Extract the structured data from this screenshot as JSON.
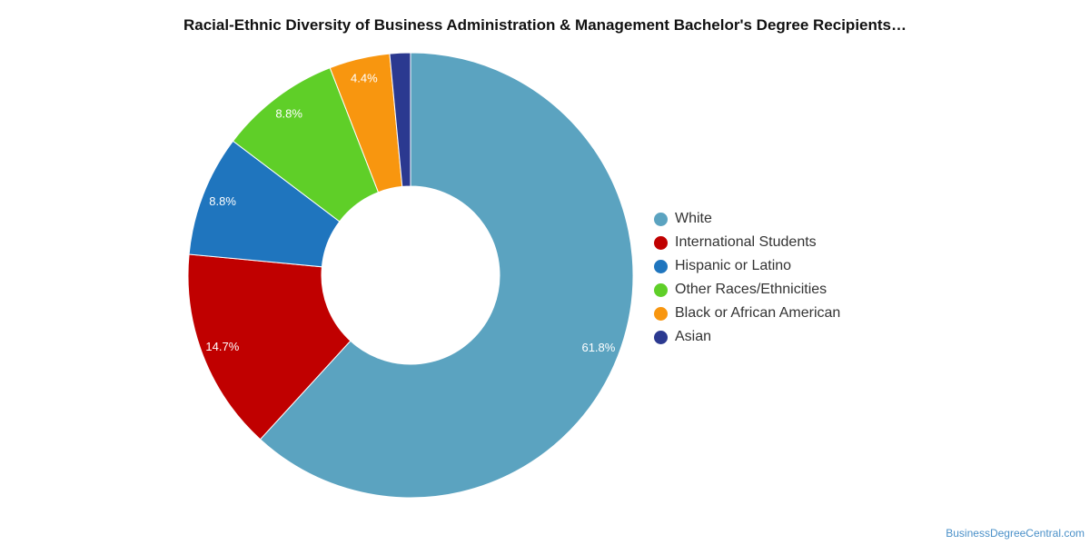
{
  "chart_data": {
    "type": "pie",
    "title": "Racial-Ethnic Diversity of Business Administration & Management Bachelor's Degree Recipients…",
    "donut": true,
    "legend_position": "right",
    "categories": [
      "White",
      "International Students",
      "Hispanic or Latino",
      "Other Races/Ethnicities",
      "Black or African American",
      "Asian"
    ],
    "values": [
      61.8,
      14.7,
      8.8,
      8.8,
      4.4,
      1.5
    ],
    "data_labels": [
      "61.8%",
      "14.7%",
      "8.8%",
      "8.8%",
      "4.4%",
      ""
    ],
    "colors": [
      "#5ba3c0",
      "#c00000",
      "#1f75be",
      "#5fcf28",
      "#f8960f",
      "#2b3990"
    ]
  },
  "watermark": "BusinessDegreeCentral.com"
}
